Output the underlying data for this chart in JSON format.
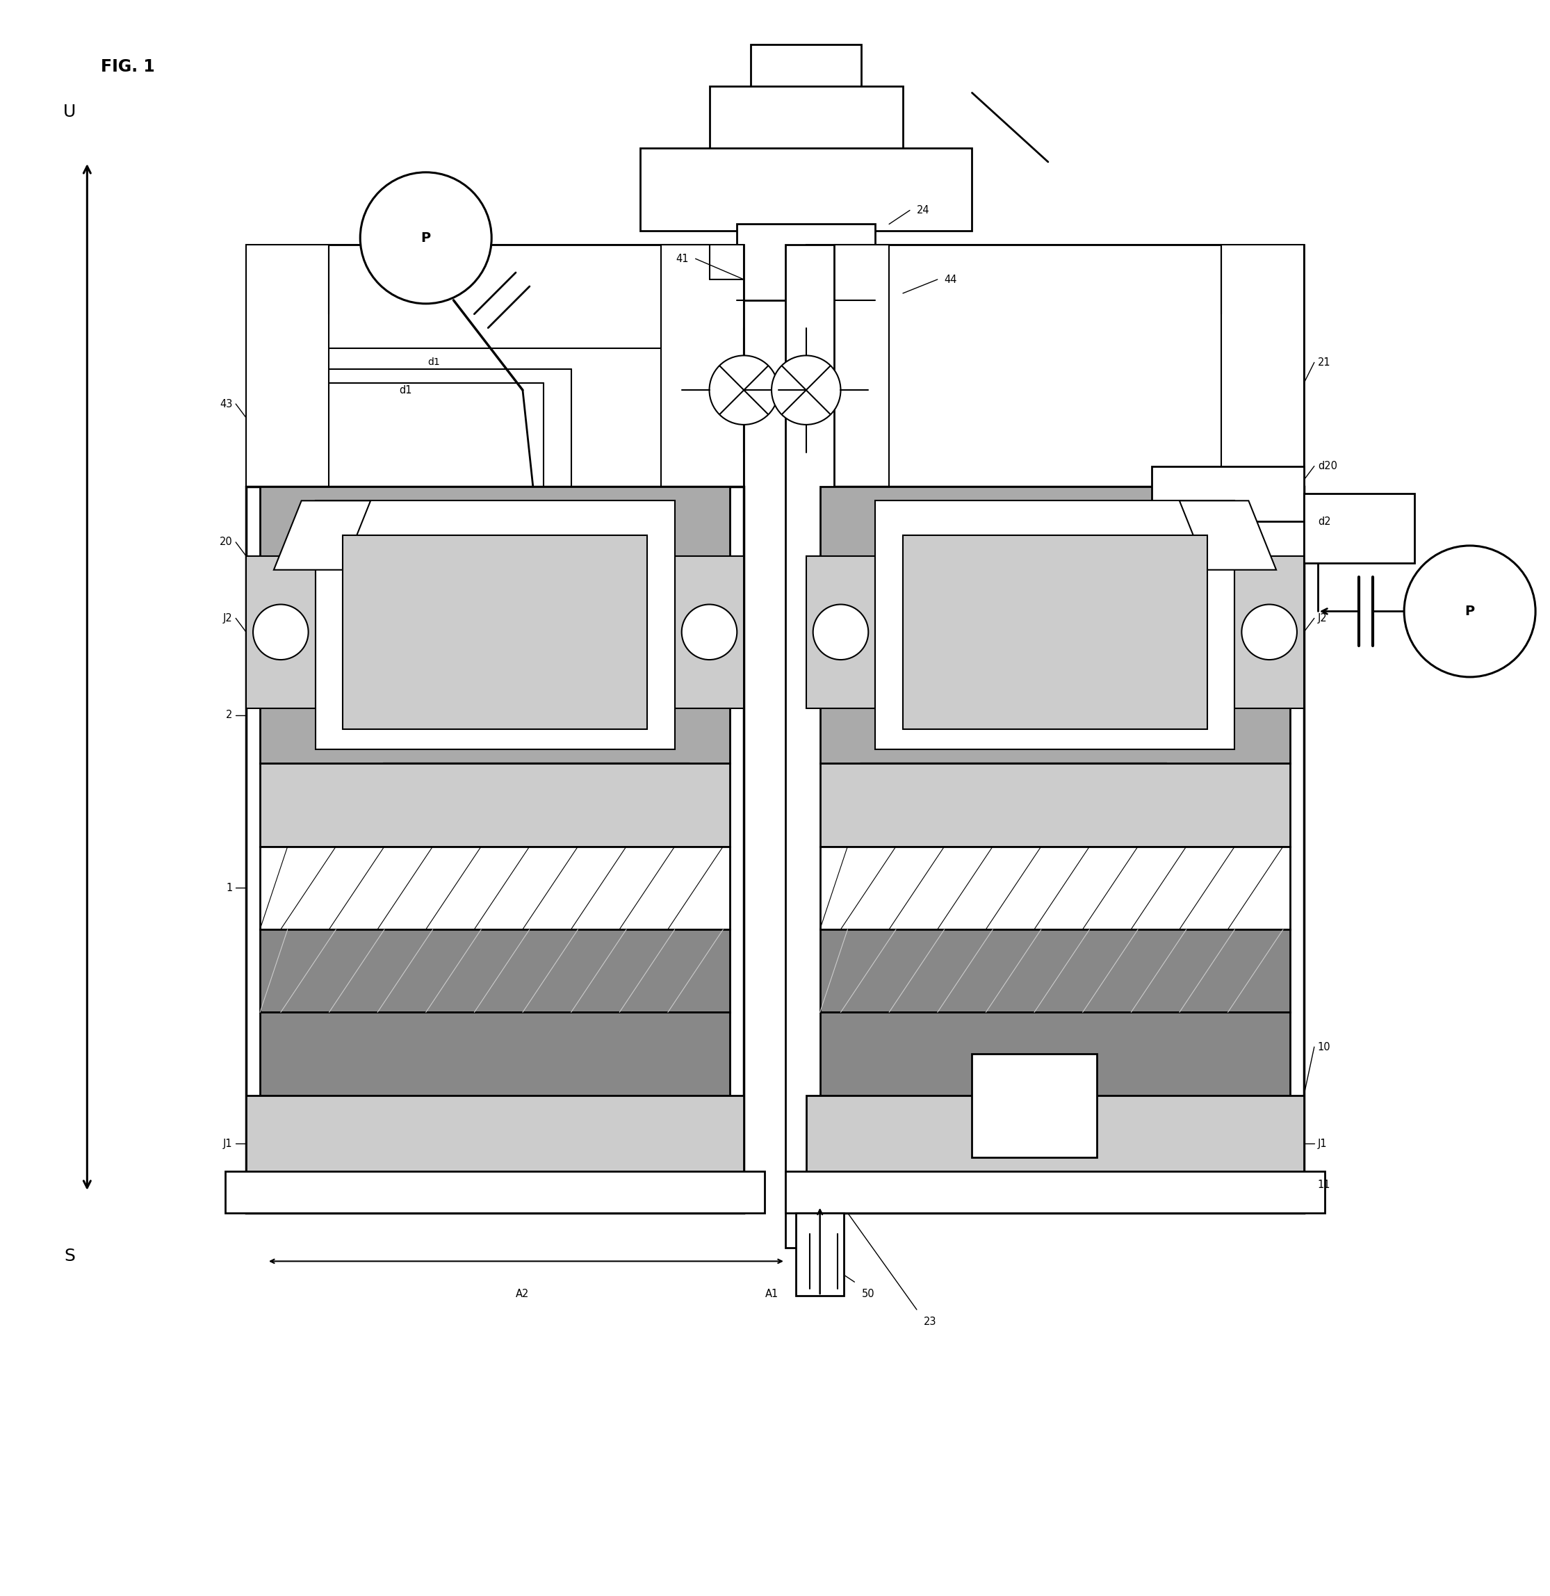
{
  "fig_width": 22.3,
  "fig_height": 22.96,
  "bg": "#ffffff",
  "gray1": "#aaaaaa",
  "gray2": "#888888",
  "gray3": "#cccccc",
  "gray4": "#999999",
  "lc": "#000000",
  "labels": {
    "title": "FIG. 1",
    "U": "U",
    "S": "S",
    "P": "P",
    "d1": "d1",
    "d2": "d2",
    "d20": "d20",
    "41": "41",
    "43": "43",
    "44": "44",
    "24": "24",
    "21": "21",
    "20": "20",
    "J2": "J2",
    "2": "2",
    "1": "1",
    "J1": "J1",
    "10": "10",
    "11": "11",
    "23": "23",
    "50": "50",
    "A1": "A1",
    "A2": "A2"
  }
}
